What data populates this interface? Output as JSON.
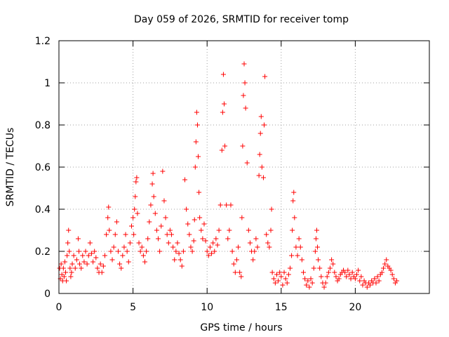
{
  "chart_data": {
    "type": "scatter",
    "title": "Day 059 of 2026, SRMTID for receiver tomp",
    "xlabel": "GPS time / hours",
    "ylabel": "SRMTID / TECUs",
    "xlim": [
      0,
      25
    ],
    "ylim": [
      0,
      1.2
    ],
    "x_ticks": [
      0,
      5,
      10,
      15,
      20
    ],
    "x_tick_labels": [
      "0",
      "5",
      "10",
      "15",
      "20"
    ],
    "y_ticks": [
      0,
      0.2,
      0.4,
      0.6,
      0.8,
      1,
      1.2
    ],
    "y_tick_labels": [
      "0",
      "0.2",
      "0.4",
      "0.6",
      "0.8",
      "1",
      "1.2"
    ],
    "grid": true,
    "marker": "+",
    "color": "#ff0000",
    "series": [
      {
        "name": "SRMTID",
        "points": [
          [
            0.05,
            0.12
          ],
          [
            0.1,
            0.07
          ],
          [
            0.15,
            0.14
          ],
          [
            0.2,
            0.09
          ],
          [
            0.25,
            0.06
          ],
          [
            0.3,
            0.12
          ],
          [
            0.35,
            0.08
          ],
          [
            0.4,
            0.15
          ],
          [
            0.45,
            0.1
          ],
          [
            0.5,
            0.06
          ],
          [
            0.55,
            0.18
          ],
          [
            0.6,
            0.24
          ],
          [
            0.65,
            0.3
          ],
          [
            0.7,
            0.2
          ],
          [
            0.75,
            0.12
          ],
          [
            0.8,
            0.08
          ],
          [
            0.85,
            0.1
          ],
          [
            0.9,
            0.14
          ],
          [
            1.0,
            0.18
          ],
          [
            1.1,
            0.12
          ],
          [
            1.2,
            0.16
          ],
          [
            1.3,
            0.26
          ],
          [
            1.35,
            0.2
          ],
          [
            1.4,
            0.14
          ],
          [
            1.5,
            0.12
          ],
          [
            1.6,
            0.18
          ],
          [
            1.7,
            0.15
          ],
          [
            1.8,
            0.2
          ],
          [
            1.9,
            0.14
          ],
          [
            2.0,
            0.18
          ],
          [
            2.1,
            0.24
          ],
          [
            2.2,
            0.19
          ],
          [
            2.3,
            0.15
          ],
          [
            2.4,
            0.2
          ],
          [
            2.5,
            0.17
          ],
          [
            2.6,
            0.12
          ],
          [
            2.7,
            0.1
          ],
          [
            2.8,
            0.14
          ],
          [
            2.9,
            0.1
          ],
          [
            3.0,
            0.13
          ],
          [
            3.1,
            0.18
          ],
          [
            3.2,
            0.28
          ],
          [
            3.3,
            0.36
          ],
          [
            3.35,
            0.41
          ],
          [
            3.4,
            0.3
          ],
          [
            3.5,
            0.2
          ],
          [
            3.6,
            0.16
          ],
          [
            3.7,
            0.22
          ],
          [
            3.8,
            0.28
          ],
          [
            3.9,
            0.34
          ],
          [
            4.0,
            0.2
          ],
          [
            4.1,
            0.14
          ],
          [
            4.2,
            0.12
          ],
          [
            4.3,
            0.18
          ],
          [
            4.4,
            0.22
          ],
          [
            4.5,
            0.28
          ],
          [
            4.6,
            0.2
          ],
          [
            4.7,
            0.15
          ],
          [
            4.8,
            0.24
          ],
          [
            4.9,
            0.32
          ],
          [
            5.0,
            0.36
          ],
          [
            5.05,
            0.28
          ],
          [
            5.1,
            0.4
          ],
          [
            5.15,
            0.46
          ],
          [
            5.2,
            0.53
          ],
          [
            5.25,
            0.55
          ],
          [
            5.3,
            0.38
          ],
          [
            5.4,
            0.24
          ],
          [
            5.5,
            0.2
          ],
          [
            5.6,
            0.22
          ],
          [
            5.7,
            0.18
          ],
          [
            5.8,
            0.15
          ],
          [
            5.9,
            0.2
          ],
          [
            6.0,
            0.26
          ],
          [
            6.1,
            0.34
          ],
          [
            6.2,
            0.42
          ],
          [
            6.3,
            0.52
          ],
          [
            6.35,
            0.57
          ],
          [
            6.4,
            0.46
          ],
          [
            6.5,
            0.38
          ],
          [
            6.6,
            0.3
          ],
          [
            6.7,
            0.26
          ],
          [
            6.8,
            0.2
          ],
          [
            6.9,
            0.32
          ],
          [
            7.0,
            0.58
          ],
          [
            7.1,
            0.44
          ],
          [
            7.2,
            0.36
          ],
          [
            7.3,
            0.28
          ],
          [
            7.4,
            0.24
          ],
          [
            7.5,
            0.3
          ],
          [
            7.6,
            0.28
          ],
          [
            7.7,
            0.22
          ],
          [
            7.8,
            0.16
          ],
          [
            7.9,
            0.2
          ],
          [
            8.0,
            0.24
          ],
          [
            8.1,
            0.19
          ],
          [
            8.2,
            0.16
          ],
          [
            8.3,
            0.13
          ],
          [
            8.4,
            0.2
          ],
          [
            8.5,
            0.54
          ],
          [
            8.6,
            0.4
          ],
          [
            8.7,
            0.33
          ],
          [
            8.8,
            0.28
          ],
          [
            8.9,
            0.22
          ],
          [
            9.0,
            0.2
          ],
          [
            9.1,
            0.25
          ],
          [
            9.15,
            0.35
          ],
          [
            9.2,
            0.6
          ],
          [
            9.25,
            0.72
          ],
          [
            9.3,
            0.86
          ],
          [
            9.35,
            0.8
          ],
          [
            9.4,
            0.65
          ],
          [
            9.45,
            0.48
          ],
          [
            9.5,
            0.36
          ],
          [
            9.6,
            0.3
          ],
          [
            9.7,
            0.26
          ],
          [
            9.8,
            0.33
          ],
          [
            9.9,
            0.25
          ],
          [
            10.0,
            0.2
          ],
          [
            10.1,
            0.18
          ],
          [
            10.2,
            0.22
          ],
          [
            10.3,
            0.19
          ],
          [
            10.4,
            0.24
          ],
          [
            10.5,
            0.2
          ],
          [
            10.6,
            0.26
          ],
          [
            10.7,
            0.23
          ],
          [
            10.8,
            0.3
          ],
          [
            10.9,
            0.42
          ],
          [
            11.0,
            0.68
          ],
          [
            11.05,
            0.86
          ],
          [
            11.1,
            1.04
          ],
          [
            11.15,
            0.9
          ],
          [
            11.2,
            0.7
          ],
          [
            11.3,
            0.42
          ],
          [
            11.4,
            0.26
          ],
          [
            11.5,
            0.3
          ],
          [
            11.6,
            0.42
          ],
          [
            11.7,
            0.2
          ],
          [
            11.8,
            0.14
          ],
          [
            11.9,
            0.1
          ],
          [
            12.0,
            0.16
          ],
          [
            12.1,
            0.22
          ],
          [
            12.2,
            0.1
          ],
          [
            12.3,
            0.08
          ],
          [
            12.35,
            0.36
          ],
          [
            12.4,
            0.7
          ],
          [
            12.45,
            0.94
          ],
          [
            12.5,
            1.09
          ],
          [
            12.55,
            1.0
          ],
          [
            12.6,
            0.88
          ],
          [
            12.7,
            0.62
          ],
          [
            12.8,
            0.3
          ],
          [
            12.9,
            0.24
          ],
          [
            13.0,
            0.2
          ],
          [
            13.1,
            0.16
          ],
          [
            13.2,
            0.2
          ],
          [
            13.3,
            0.26
          ],
          [
            13.4,
            0.22
          ],
          [
            13.5,
            0.56
          ],
          [
            13.55,
            0.66
          ],
          [
            13.6,
            0.76
          ],
          [
            13.65,
            0.84
          ],
          [
            13.7,
            0.6
          ],
          [
            13.8,
            0.55
          ],
          [
            13.85,
            0.8
          ],
          [
            13.9,
            1.03
          ],
          [
            14.0,
            0.28
          ],
          [
            14.1,
            0.24
          ],
          [
            14.2,
            0.22
          ],
          [
            14.3,
            0.3
          ],
          [
            14.35,
            0.4
          ],
          [
            14.4,
            0.1
          ],
          [
            14.5,
            0.07
          ],
          [
            14.6,
            0.05
          ],
          [
            14.7,
            0.09
          ],
          [
            14.8,
            0.06
          ],
          [
            14.9,
            0.1
          ],
          [
            15.0,
            0.08
          ],
          [
            15.1,
            0.04
          ],
          [
            15.2,
            0.1
          ],
          [
            15.3,
            0.07
          ],
          [
            15.4,
            0.05
          ],
          [
            15.5,
            0.09
          ],
          [
            15.6,
            0.12
          ],
          [
            15.7,
            0.18
          ],
          [
            15.75,
            0.3
          ],
          [
            15.8,
            0.44
          ],
          [
            15.85,
            0.48
          ],
          [
            15.9,
            0.36
          ],
          [
            16.0,
            0.22
          ],
          [
            16.1,
            0.18
          ],
          [
            16.2,
            0.26
          ],
          [
            16.3,
            0.22
          ],
          [
            16.4,
            0.16
          ],
          [
            16.5,
            0.1
          ],
          [
            16.6,
            0.07
          ],
          [
            16.7,
            0.04
          ],
          [
            16.8,
            0.06
          ],
          [
            16.9,
            0.03
          ],
          [
            17.0,
            0.07
          ],
          [
            17.1,
            0.05
          ],
          [
            17.2,
            0.12
          ],
          [
            17.3,
            0.2
          ],
          [
            17.35,
            0.26
          ],
          [
            17.4,
            0.3
          ],
          [
            17.45,
            0.22
          ],
          [
            17.5,
            0.16
          ],
          [
            17.6,
            0.12
          ],
          [
            17.7,
            0.08
          ],
          [
            17.8,
            0.05
          ],
          [
            17.9,
            0.03
          ],
          [
            18.0,
            0.05
          ],
          [
            18.1,
            0.08
          ],
          [
            18.2,
            0.1
          ],
          [
            18.3,
            0.12
          ],
          [
            18.4,
            0.16
          ],
          [
            18.5,
            0.14
          ],
          [
            18.6,
            0.1
          ],
          [
            18.7,
            0.08
          ],
          [
            18.8,
            0.06
          ],
          [
            18.9,
            0.07
          ],
          [
            19.0,
            0.09
          ],
          [
            19.1,
            0.1
          ],
          [
            19.2,
            0.11
          ],
          [
            19.3,
            0.1
          ],
          [
            19.4,
            0.08
          ],
          [
            19.5,
            0.11
          ],
          [
            19.6,
            0.09
          ],
          [
            19.7,
            0.07
          ],
          [
            19.8,
            0.1
          ],
          [
            19.9,
            0.08
          ],
          [
            20.0,
            0.07
          ],
          [
            20.1,
            0.09
          ],
          [
            20.2,
            0.11
          ],
          [
            20.3,
            0.06
          ],
          [
            20.4,
            0.08
          ],
          [
            20.5,
            0.04
          ],
          [
            20.6,
            0.06
          ],
          [
            20.7,
            0.05
          ],
          [
            20.8,
            0.03
          ],
          [
            20.9,
            0.05
          ],
          [
            21.0,
            0.04
          ],
          [
            21.1,
            0.06
          ],
          [
            21.2,
            0.05
          ],
          [
            21.3,
            0.07
          ],
          [
            21.4,
            0.05
          ],
          [
            21.5,
            0.08
          ],
          [
            21.6,
            0.06
          ],
          [
            21.7,
            0.09
          ],
          [
            21.8,
            0.1
          ],
          [
            21.9,
            0.12
          ],
          [
            22.0,
            0.14
          ],
          [
            22.1,
            0.16
          ],
          [
            22.2,
            0.13
          ],
          [
            22.3,
            0.12
          ],
          [
            22.4,
            0.11
          ],
          [
            22.5,
            0.09
          ],
          [
            22.6,
            0.07
          ],
          [
            22.7,
            0.05
          ],
          [
            22.8,
            0.06
          ]
        ]
      }
    ]
  }
}
